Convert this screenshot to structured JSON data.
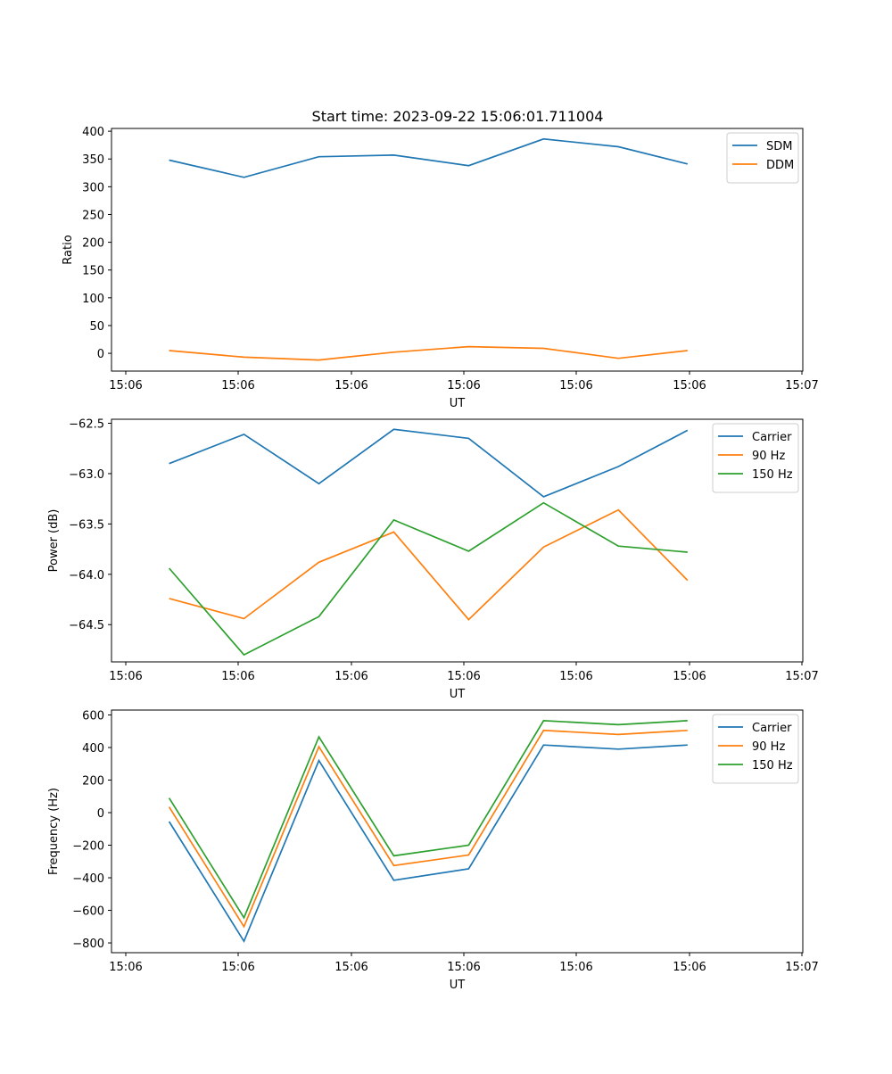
{
  "figure": {
    "title": "Start time: 2023-09-22 15:06:01.711004"
  },
  "chart_data": [
    {
      "type": "line",
      "title": "Start time: 2023-09-22 15:06:01.711004",
      "xlabel": "UT",
      "ylabel": "Ratio",
      "x_tick_labels": [
        "15:06",
        "15:06",
        "15:06",
        "15:06",
        "15:06",
        "15:06",
        "15:07"
      ],
      "xlim": [
        -0.5,
        5.5
      ],
      "x": [
        0,
        0.65,
        1.3,
        1.95,
        2.6,
        3.25,
        3.9,
        4.5
      ],
      "ylim": [
        -32,
        405
      ],
      "y_ticks": [
        0,
        50,
        100,
        150,
        200,
        250,
        300,
        350,
        400
      ],
      "legend": "top-right",
      "grid": false,
      "series": [
        {
          "name": "SDM",
          "color": "#1f77b4",
          "values": [
            348,
            317,
            354,
            357,
            338,
            386,
            372,
            341
          ]
        },
        {
          "name": "DDM",
          "color": "#ff7f0e",
          "values": [
            5,
            -7,
            -12,
            2,
            12,
            9,
            -9,
            5
          ]
        }
      ]
    },
    {
      "type": "line",
      "title": "",
      "xlabel": "UT",
      "ylabel": "Power (dB)",
      "x_tick_labels": [
        "15:06",
        "15:06",
        "15:06",
        "15:06",
        "15:06",
        "15:06",
        "15:07"
      ],
      "xlim": [
        -0.5,
        5.5
      ],
      "x": [
        0,
        0.65,
        1.3,
        1.95,
        2.6,
        3.25,
        3.9,
        4.5
      ],
      "ylim": [
        -64.87,
        -62.46
      ],
      "y_ticks": [
        -64.5,
        -64.0,
        -63.5,
        -63.0,
        -62.5
      ],
      "y_tick_labels": [
        "−64.5",
        "−64.0",
        "−63.5",
        "−63.0",
        "−62.5"
      ],
      "legend": "top-right",
      "grid": false,
      "series": [
        {
          "name": "Carrier",
          "color": "#1f77b4",
          "values": [
            -62.9,
            -62.61,
            -63.1,
            -62.56,
            -62.65,
            -63.23,
            -62.93,
            -62.57
          ]
        },
        {
          "name": "90 Hz",
          "color": "#ff7f0e",
          "values": [
            -64.24,
            -64.44,
            -63.88,
            -63.58,
            -64.45,
            -63.73,
            -63.36,
            -64.06
          ]
        },
        {
          "name": "150 Hz",
          "color": "#2ca02c",
          "values": [
            -63.94,
            -64.8,
            -64.42,
            -63.46,
            -63.77,
            -63.29,
            -63.72,
            -63.78
          ]
        }
      ]
    },
    {
      "type": "line",
      "title": "",
      "xlabel": "UT",
      "ylabel": "Frequency (Hz)",
      "x_tick_labels": [
        "15:06",
        "15:06",
        "15:06",
        "15:06",
        "15:06",
        "15:06",
        "15:07"
      ],
      "xlim": [
        -0.5,
        5.5
      ],
      "x": [
        0,
        0.65,
        1.3,
        1.95,
        2.6,
        3.25,
        3.9,
        4.5
      ],
      "ylim": [
        -860,
        630
      ],
      "y_ticks": [
        -800,
        -600,
        -400,
        -200,
        0,
        200,
        400,
        600
      ],
      "y_tick_labels": [
        "−800",
        "−600",
        "−400",
        "−200",
        "0",
        "200",
        "400",
        "600"
      ],
      "legend": "top-right",
      "grid": false,
      "series": [
        {
          "name": "Carrier",
          "color": "#1f77b4",
          "values": [
            -55,
            -790,
            320,
            -415,
            -345,
            415,
            390,
            415
          ]
        },
        {
          "name": "90 Hz",
          "color": "#ff7f0e",
          "values": [
            35,
            -700,
            405,
            -325,
            -260,
            505,
            480,
            505
          ]
        },
        {
          "name": "150 Hz",
          "color": "#2ca02c",
          "values": [
            90,
            -645,
            465,
            -265,
            -200,
            565,
            540,
            565
          ]
        }
      ]
    }
  ]
}
